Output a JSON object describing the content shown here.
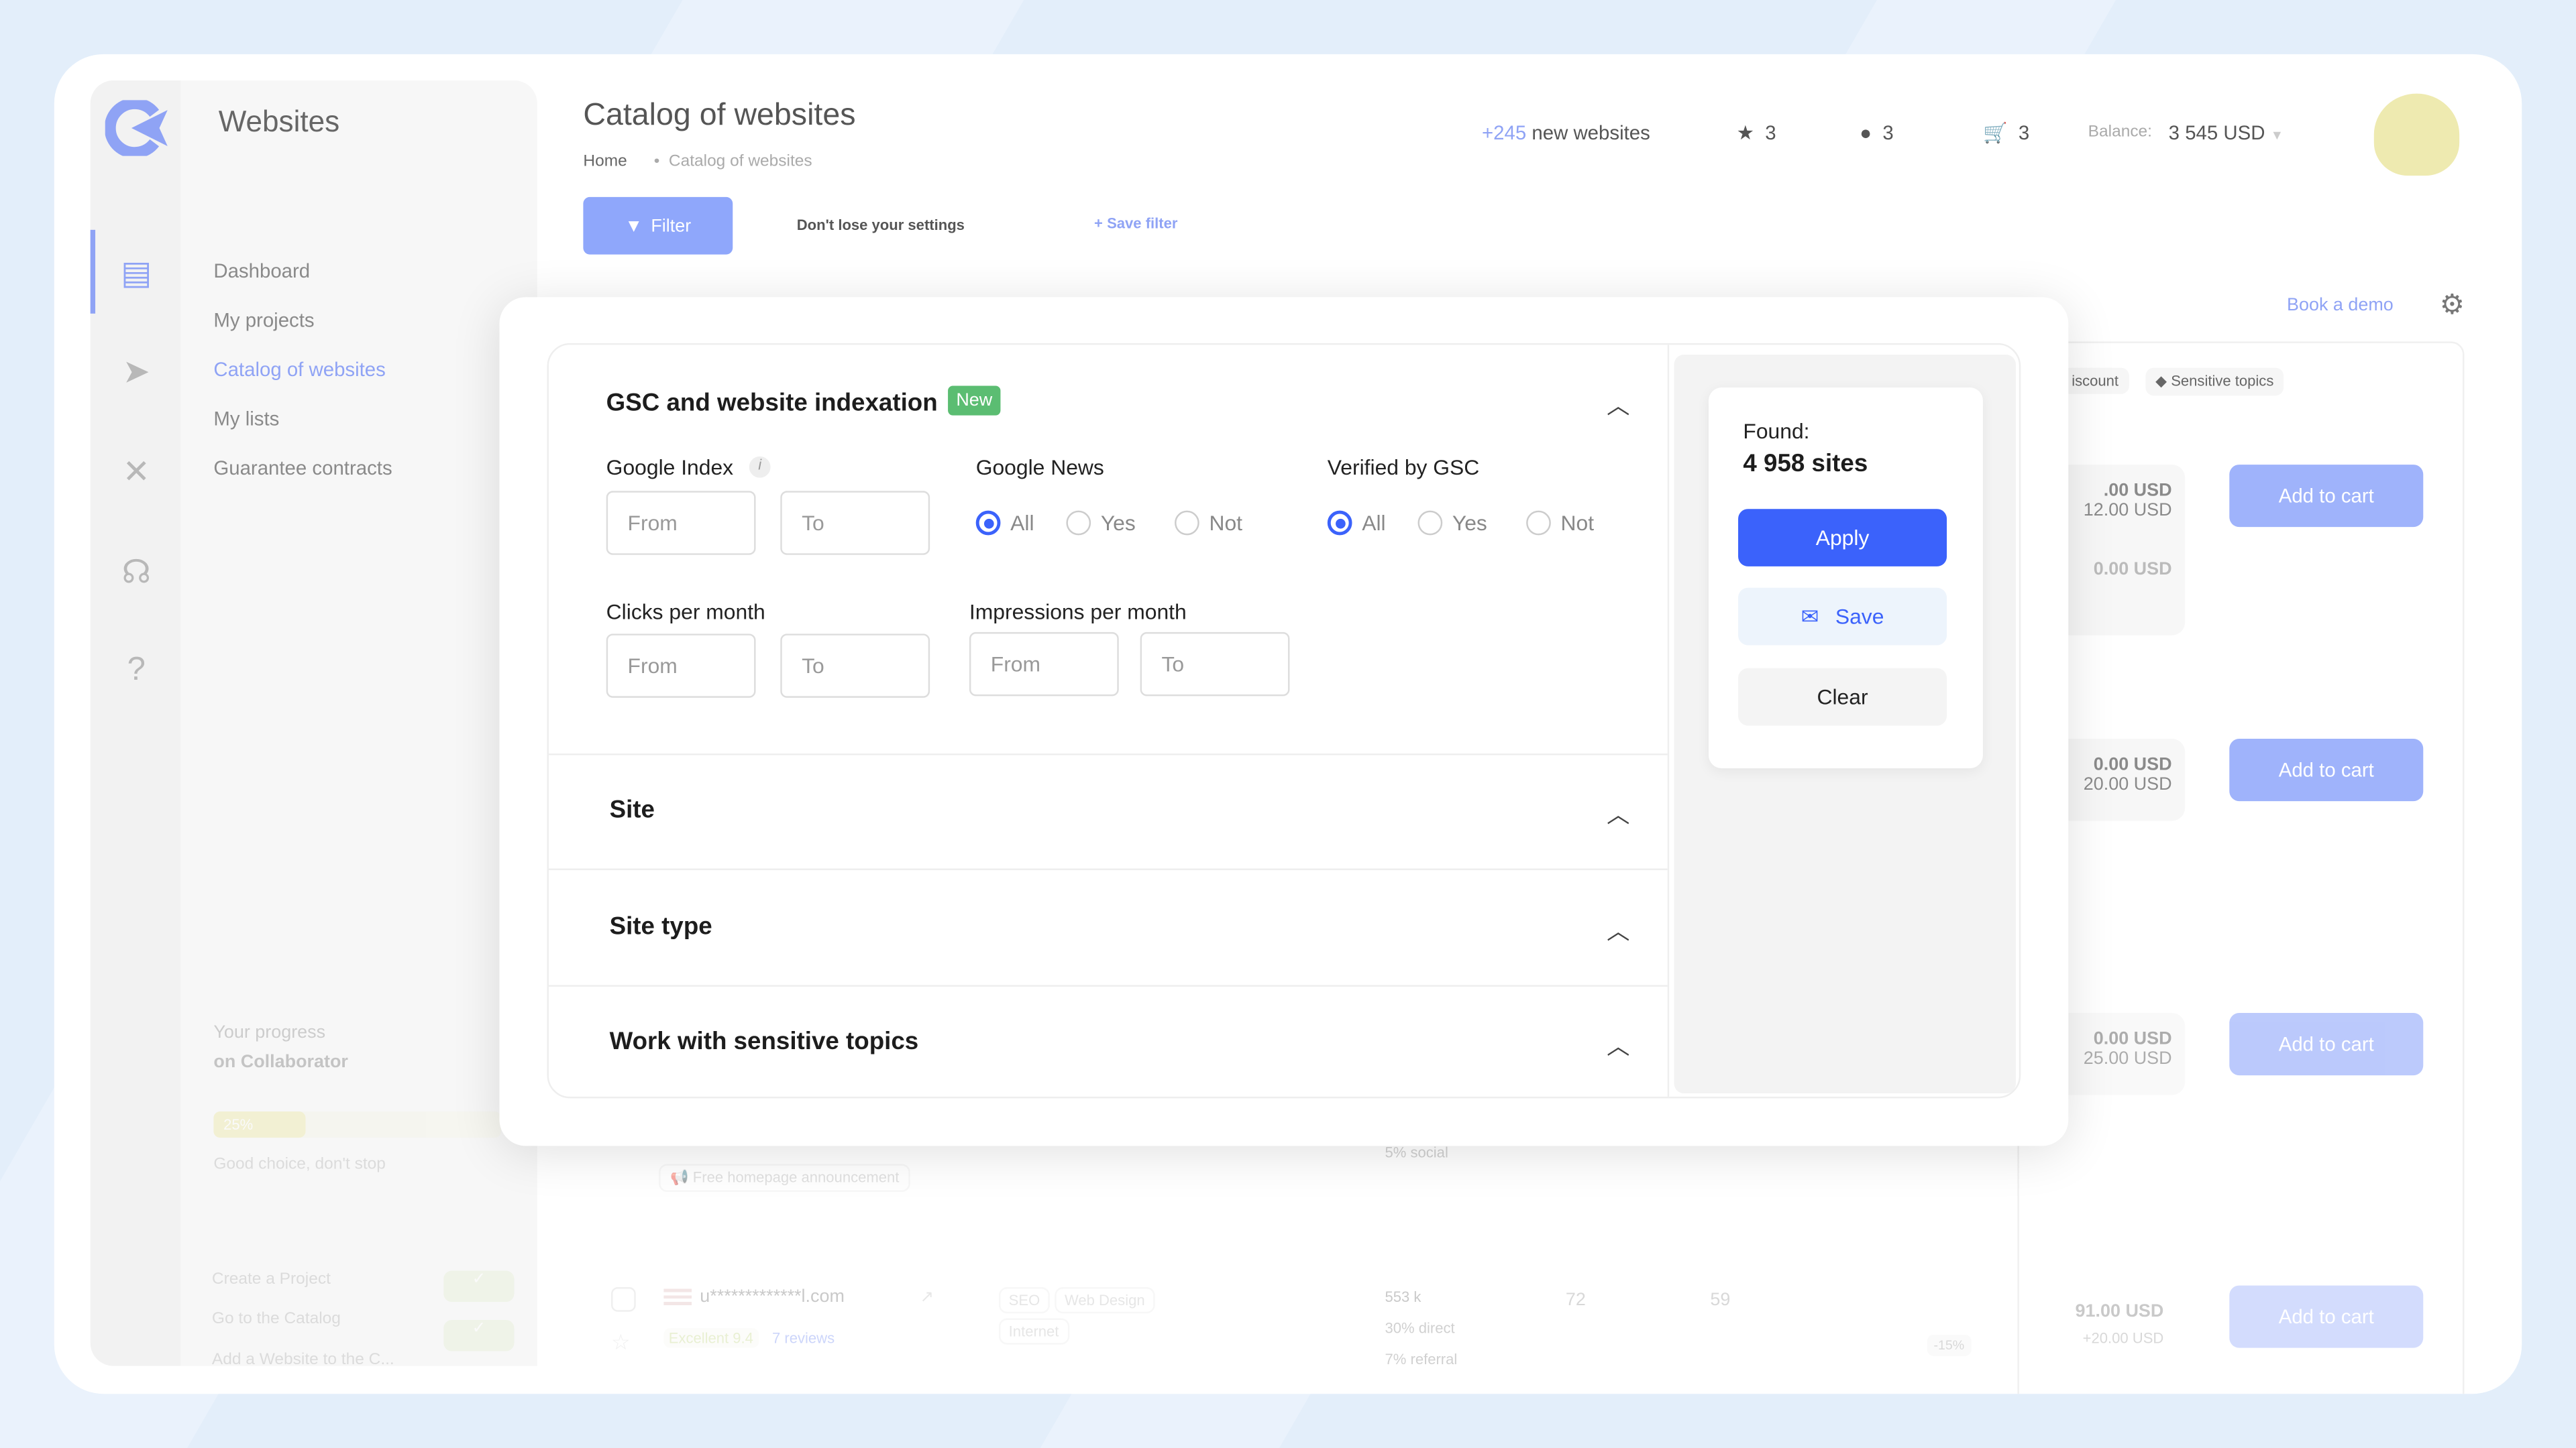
{
  "sidebar": {
    "section_title": "Websites",
    "items": [
      {
        "label": "Dashboard"
      },
      {
        "label": "My projects"
      },
      {
        "label": "Catalog of websites",
        "active": true
      },
      {
        "label": "My lists"
      },
      {
        "label": "Guarantee contracts"
      }
    ],
    "progress": {
      "title": "Your progress",
      "subtitle": "on Collaborator",
      "percent_label": "25%",
      "percent": 25,
      "message": "Good choice, don't stop",
      "tasks": [
        {
          "label": "Create a Project",
          "done": true
        },
        {
          "label": "Go to the Catalog",
          "done": true
        },
        {
          "label": "Add a Website to the C..."
        }
      ]
    }
  },
  "header": {
    "title": "Catalog of websites",
    "breadcrumb": [
      "Home",
      "Catalog of websites"
    ],
    "new_count": "+245",
    "new_label": "new websites",
    "favorites": "3",
    "messages": "3",
    "cart": "3",
    "balance_label": "Balance:",
    "balance": "3 545 USD"
  },
  "toolbar": {
    "filter": "Filter",
    "hint": "Don't lose your settings",
    "save_filter": "Save filter",
    "book_demo": "Book a demo"
  },
  "table": {
    "chips": [
      "iscount",
      "Sensitive topics"
    ],
    "rows": [
      {
        "price": ".00 USD",
        "extra": "12.00 USD",
        "price2": "0.00 USD",
        "action": "Add to cart"
      },
      {
        "price": "0.00 USD",
        "extra": "20.00 USD",
        "action": "Add to cart"
      },
      {
        "price": "0.00 USD",
        "extra": "25.00 USD",
        "action": "Add to cart",
        "announcement": "Free homepage announcement",
        "social": "5% social"
      },
      {
        "domain": "u*************l.com",
        "tags": [
          "SEO",
          "Web Design",
          "Internet"
        ],
        "rating": "Excellent 9.4",
        "reviews": "7 reviews",
        "traffic": "553 k",
        "direct": "30% direct",
        "referral": "7% referral",
        "col1": "72",
        "col2": "59",
        "discount": "-15%",
        "price": "91.00 USD",
        "extra": "+20.00 USD",
        "action": "Add to cart"
      }
    ]
  },
  "filter_modal": {
    "section1": {
      "title": "GSC and website indexation",
      "badge": "New",
      "google_index": {
        "label": "Google Index",
        "from": "From",
        "to": "To"
      },
      "google_news": {
        "label": "Google News",
        "options": [
          "All",
          "Yes",
          "Not"
        ],
        "selected": "All"
      },
      "verified": {
        "label": "Verified by GSC",
        "options": [
          "All",
          "Yes",
          "Not"
        ],
        "selected": "All"
      },
      "clicks": {
        "label": "Clicks per month",
        "from": "From",
        "to": "To"
      },
      "impressions": {
        "label": "Impressions per month",
        "from": "From",
        "to": "To"
      }
    },
    "sections": [
      "Site",
      "Site type",
      "Work with sensitive topics"
    ],
    "found_label": "Found:",
    "found_value": "4 958 sites",
    "apply": "Apply",
    "save": "Save",
    "clear": "Clear"
  },
  "colors": {
    "accent": "#3b62fb",
    "badge": "#5bbd72",
    "background": "#e3eefa"
  }
}
